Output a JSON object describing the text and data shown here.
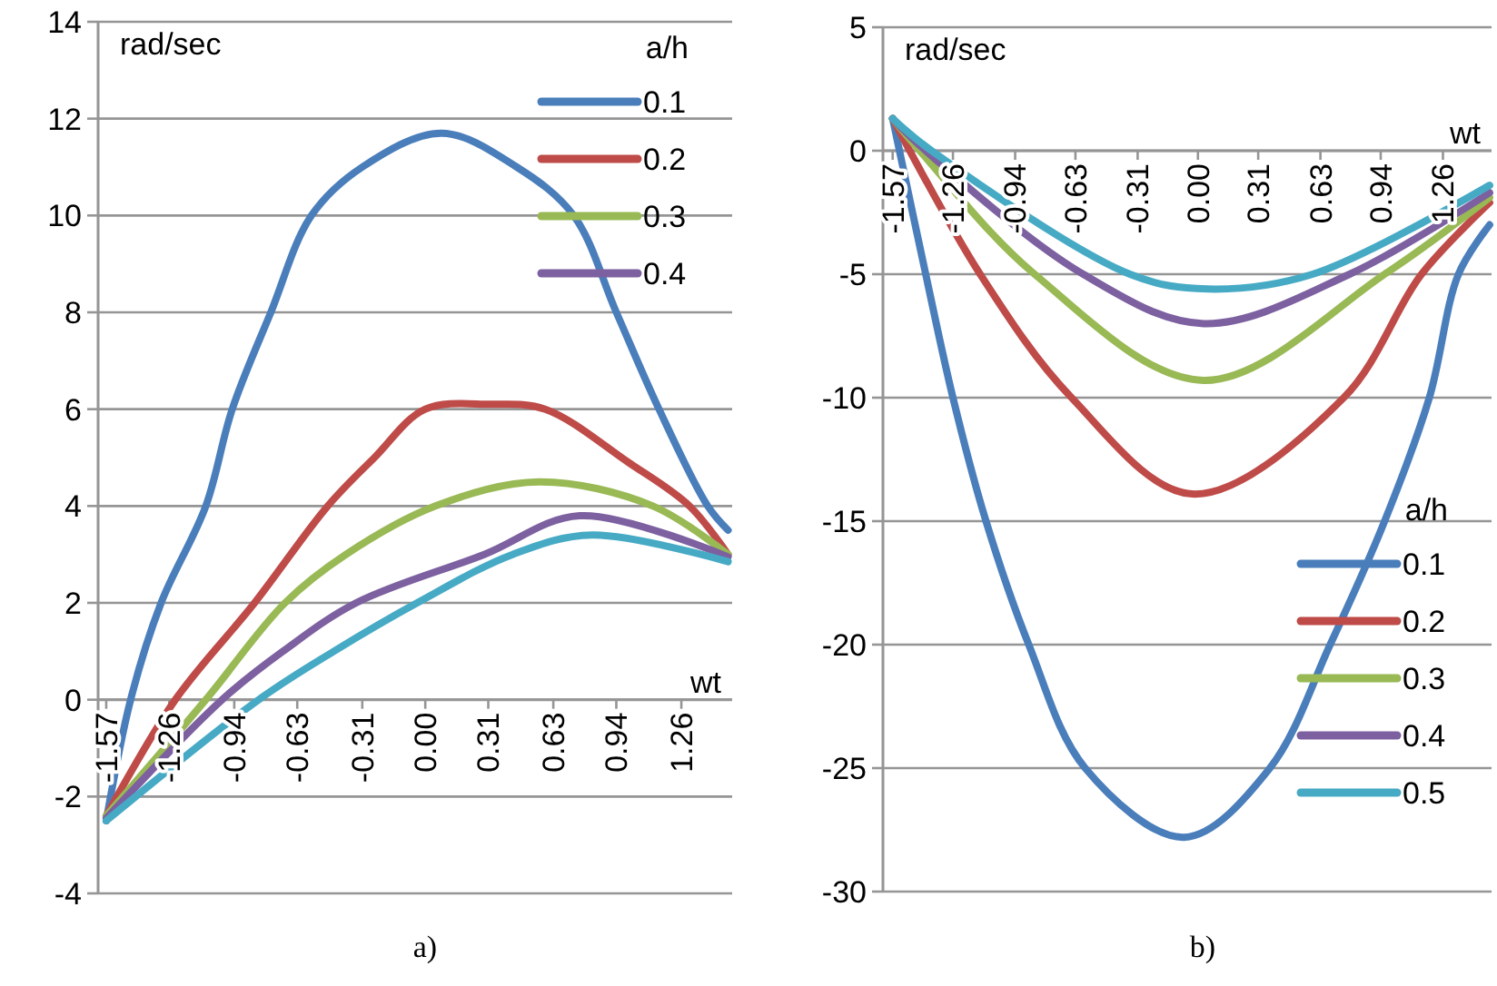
{
  "chart_data": [
    {
      "type": "line",
      "xlabel": "wt",
      "ylabel": "rad/sec",
      "legend_title": "a/h",
      "legend": "top right",
      "grid": "y",
      "annotations": [
        "a)"
      ],
      "xlim": [
        -1.61,
        1.51
      ],
      "ylim": [
        -4,
        14
      ],
      "xticks": [
        -1.57,
        -1.26,
        -0.94,
        -0.63,
        -0.31,
        {
          "value": 0,
          "label": "0.00"
        },
        0.31,
        0.63,
        0.94,
        1.26
      ],
      "yticks": [
        -4,
        -2,
        0,
        2,
        4,
        6,
        8,
        10,
        12,
        14
      ],
      "series": [
        {
          "name": "0.1",
          "color": "#4a7ebb",
          "x": [
            -1.57,
            -1.45,
            -1.3,
            -1.08,
            -0.95,
            -0.76,
            -0.56,
            -0.31,
            0.08,
            0.45,
            0.73,
            0.94,
            1.15,
            1.39,
            1.49
          ],
          "values": [
            -2.5,
            0,
            2,
            4,
            6,
            8,
            10,
            11,
            11.7,
            11,
            10,
            8,
            6,
            4,
            3.5
          ]
        },
        {
          "name": "0.2",
          "color": "#be4b48",
          "x": [
            -1.57,
            -1.23,
            -0.84,
            -0.48,
            -0.25,
            0,
            0.32,
            0.59,
            1.0,
            1.3,
            1.49
          ],
          "values": [
            -2.4,
            0,
            2,
            4,
            5,
            6,
            6.1,
            6,
            4.9,
            4,
            3.0
          ]
        },
        {
          "name": "0.3",
          "color": "#98b954",
          "x": [
            -1.57,
            -1.08,
            -0.69,
            -0.39,
            0.05,
            0.56,
            1.12,
            1.49
          ],
          "values": [
            -2.4,
            0,
            2,
            3,
            4,
            4.5,
            4,
            3.0
          ]
        },
        {
          "name": "0.4",
          "color": "#7d60a0",
          "x": [
            -1.57,
            -1.0,
            -0.7,
            -0.34,
            0.29,
            0.76,
            1.49
          ],
          "values": [
            -2.45,
            0,
            1,
            2,
            3,
            3.8,
            2.95
          ]
        },
        {
          "color": "#46aac5",
          "x": [
            -1.57,
            -0.82,
            -0.45,
            -0.04,
            0.43,
            0.82,
            1.49
          ],
          "values": [
            -2.5,
            0,
            1,
            2,
            3,
            3.4,
            2.85
          ]
        }
      ]
    },
    {
      "type": "line",
      "xlabel": "wt",
      "ylabel": "rad/sec",
      "legend_title": "a/h",
      "legend": "bottom right",
      "grid": "y",
      "annotations": [
        "b)"
      ],
      "xlim": [
        -1.62,
        1.51
      ],
      "ylim": [
        -30,
        5
      ],
      "xticks": [
        -1.57,
        -1.26,
        -0.94,
        -0.63,
        -0.31,
        {
          "value": 0,
          "label": "0.00"
        },
        0.31,
        0.63,
        0.94,
        1.26
      ],
      "yticks": [
        -30,
        -25,
        -20,
        -15,
        -10,
        -5,
        0,
        5
      ],
      "series": [
        {
          "name": "0.1",
          "color": "#4a7ebb",
          "x": [
            -1.57,
            -1.4,
            -1.26,
            -1.09,
            -0.87,
            -0.58,
            -0.07,
            0.37,
            0.68,
            0.96,
            1.19,
            1.34,
            1.5
          ],
          "values": [
            1.3,
            -5,
            -10,
            -15,
            -20,
            -25,
            -27.8,
            -25,
            -20,
            -15,
            -10,
            -5,
            -3.0
          ]
        },
        {
          "name": "0.2",
          "color": "#be4b48",
          "x": [
            -1.57,
            -1.12,
            -0.65,
            -0.03,
            0.75,
            1.15,
            1.5
          ],
          "values": [
            1.3,
            -5,
            -10,
            -13.9,
            -10,
            -5,
            -2.1
          ]
        },
        {
          "name": "0.3",
          "color": "#98b954",
          "x": [
            -1.57,
            -1.43,
            -0.84,
            0.03,
            0.96,
            1.5
          ],
          "values": [
            1.3,
            0,
            -5,
            -9.3,
            -5,
            -1.9
          ]
        },
        {
          "name": "0.4",
          "color": "#7d60a0",
          "x": [
            -1.57,
            -1.4,
            -0.59,
            0.03,
            0.78,
            1.5
          ],
          "values": [
            1.3,
            0,
            -5,
            -7.0,
            -5,
            -1.7
          ]
        },
        {
          "name": "0.5",
          "color": "#46aac5",
          "x": [
            -1.57,
            -1.37,
            -0.35,
            0.05,
            0.59,
            1.5
          ],
          "values": [
            1.3,
            0,
            -5,
            -5.6,
            -5,
            -1.4
          ]
        }
      ]
    }
  ]
}
